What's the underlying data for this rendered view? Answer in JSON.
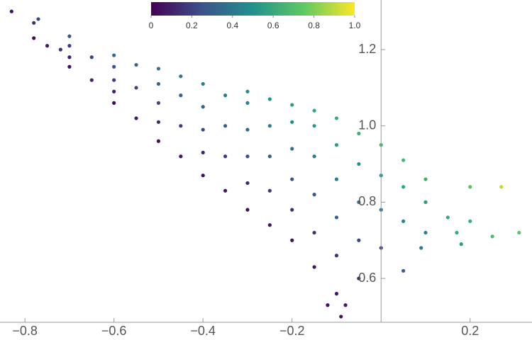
{
  "chart_data": {
    "type": "scatter",
    "x": [
      -0.83,
      -0.78,
      -0.78,
      -0.77,
      -0.7,
      -0.7,
      -0.7,
      -0.7,
      -0.6,
      -0.6,
      -0.6,
      -0.6,
      -0.6,
      -0.5,
      -0.5,
      -0.5,
      -0.5,
      -0.5,
      -0.4,
      -0.4,
      -0.4,
      -0.4,
      -0.4,
      -0.3,
      -0.3,
      -0.3,
      -0.3,
      -0.3,
      -0.3,
      -0.2,
      -0.2,
      -0.2,
      -0.2,
      -0.2,
      -0.2,
      -0.15,
      -0.15,
      -0.15,
      -0.15,
      -0.15,
      -0.15,
      -0.1,
      -0.1,
      -0.1,
      -0.1,
      -0.1,
      -0.1,
      -0.05,
      -0.05,
      -0.05,
      -0.05,
      -0.05,
      0.0,
      0.0,
      0.0,
      0.0,
      0.05,
      0.05,
      0.05,
      0.05,
      0.1,
      0.1,
      0.1,
      0.15,
      0.2,
      0.27,
      0.31,
      0.25,
      0.09,
      0.2,
      0.18,
      -0.09,
      -0.12,
      -0.08,
      0.17,
      -0.75,
      -0.72,
      -0.65,
      -0.65,
      -0.55,
      -0.55,
      -0.55,
      -0.45,
      -0.45,
      -0.45,
      -0.45,
      -0.35,
      -0.35,
      -0.35,
      -0.35,
      -0.25,
      -0.25,
      -0.25,
      -0.25,
      -0.25
    ],
    "values": [
      1.3,
      1.23,
      1.27,
      1.28,
      1.155,
      1.18,
      1.21,
      1.235,
      1.06,
      1.09,
      1.12,
      1.155,
      1.185,
      0.96,
      1.01,
      1.06,
      1.11,
      1.15,
      0.87,
      0.93,
      0.99,
      1.05,
      1.11,
      0.78,
      0.85,
      0.92,
      0.99,
      1.06,
      1.09,
      0.7,
      0.78,
      0.86,
      0.94,
      1.01,
      1.055,
      0.63,
      0.72,
      0.82,
      0.92,
      1.0,
      1.04,
      0.56,
      0.66,
      0.76,
      0.86,
      0.95,
      1.02,
      0.6,
      0.7,
      0.8,
      0.9,
      0.98,
      0.68,
      0.78,
      0.87,
      0.95,
      0.62,
      0.75,
      0.84,
      0.91,
      0.72,
      0.8,
      0.86,
      0.76,
      0.84,
      0.84,
      0.72,
      0.71,
      0.68,
      0.75,
      0.69,
      0.5,
      0.53,
      0.53,
      0.72,
      1.21,
      1.2,
      1.12,
      1.18,
      1.02,
      1.1,
      1.16,
      0.92,
      1.0,
      1.08,
      1.13,
      0.83,
      0.92,
      1.0,
      1.08,
      0.74,
      0.83,
      0.92,
      1.0,
      1.07
    ],
    "color_values": [
      0.05,
      0.03,
      0.15,
      0.22,
      0.04,
      0.1,
      0.18,
      0.27,
      0.03,
      0.1,
      0.18,
      0.26,
      0.34,
      0.04,
      0.12,
      0.22,
      0.3,
      0.39,
      0.03,
      0.12,
      0.22,
      0.32,
      0.42,
      0.04,
      0.13,
      0.24,
      0.35,
      0.44,
      0.5,
      0.05,
      0.14,
      0.26,
      0.38,
      0.48,
      0.55,
      0.06,
      0.15,
      0.28,
      0.42,
      0.53,
      0.58,
      0.07,
      0.16,
      0.3,
      0.43,
      0.55,
      0.62,
      0.1,
      0.22,
      0.36,
      0.5,
      0.62,
      0.2,
      0.35,
      0.5,
      0.66,
      0.3,
      0.45,
      0.58,
      0.66,
      0.45,
      0.55,
      0.63,
      0.6,
      0.72,
      0.9,
      0.72,
      0.68,
      0.42,
      0.62,
      0.55,
      0.05,
      0.06,
      0.08,
      0.6,
      0.08,
      0.15,
      0.1,
      0.2,
      0.08,
      0.2,
      0.32,
      0.06,
      0.18,
      0.3,
      0.4,
      0.06,
      0.18,
      0.3,
      0.42,
      0.06,
      0.18,
      0.3,
      0.42,
      0.52
    ],
    "xlim": [
      -0.856,
      0.339
    ],
    "ylim": [
      0.485,
      1.33
    ],
    "xticks": [
      {
        "value": -0.8,
        "label": "−0.8"
      },
      {
        "value": -0.6,
        "label": "−0.6"
      },
      {
        "value": -0.4,
        "label": "−0.4"
      },
      {
        "value": -0.2,
        "label": "−0.2"
      },
      0.2
    ],
    "yticks": [
      0.6,
      0.8,
      {
        "value": 1.0,
        "label": "1.0"
      },
      1.2
    ],
    "colorbar": {
      "lim": [
        0,
        1
      ],
      "ticks": [
        0,
        0.2,
        0.4,
        0.6,
        0.8,
        {
          "value": 1.0,
          "label": "1.0"
        }
      ],
      "colormap": [
        "#440154",
        "#3b528b",
        "#21918c",
        "#5ec962",
        "#fde725"
      ]
    }
  }
}
